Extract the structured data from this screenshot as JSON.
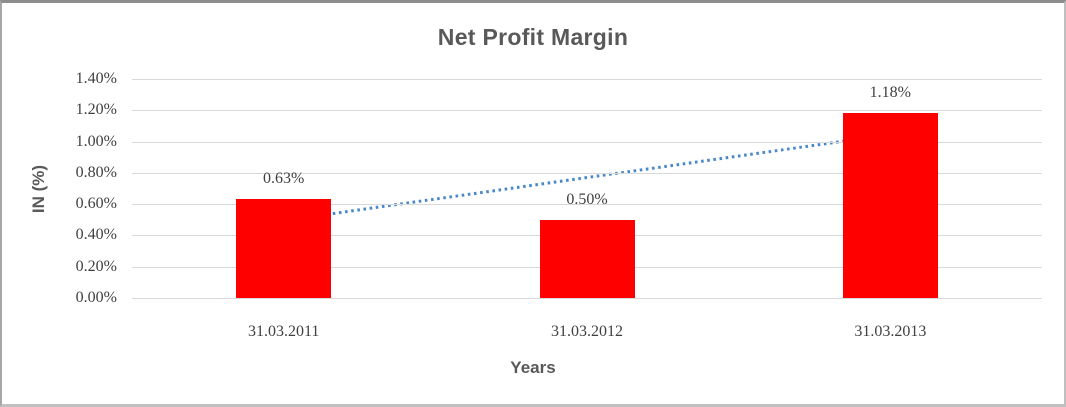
{
  "chart_data": {
    "type": "bar",
    "title": "Net Profit Margin",
    "xlabel": "Years",
    "ylabel": "IN (%)",
    "categories": [
      "31.03.2011",
      "31.03.2012",
      "31.03.2013"
    ],
    "values": [
      0.63,
      0.5,
      1.18
    ],
    "data_labels": [
      "0.63%",
      "0.50%",
      "1.18%"
    ],
    "ylim": [
      0,
      1.4
    ],
    "ytick_step": 0.2,
    "ytick_labels": [
      "0.00%",
      "0.20%",
      "0.40%",
      "0.60%",
      "0.80%",
      "1.00%",
      "1.20%",
      "1.40%"
    ],
    "grid": true,
    "legend": "none",
    "trendline": {
      "type": "linear",
      "style": "dotted",
      "start_value": 0.495,
      "end_value": 1.045
    }
  },
  "colors": {
    "title": "#595959",
    "axis_title": "#595959",
    "tick_label": "#404040",
    "gridline": "#D9D9D9",
    "bar": "#FF0000",
    "trendline": "#4A89C8",
    "background": "#FFFFFF"
  }
}
